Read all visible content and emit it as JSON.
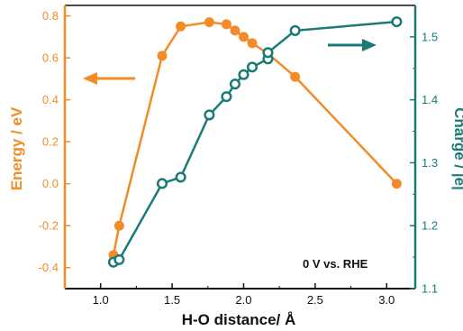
{
  "chart_data": {
    "type": "line",
    "xlabel": "H-O distance/ Å",
    "ylabel": "Energy / eV",
    "ylabel_right": "Charge / |e|",
    "annotation": "0 V vs. RHE",
    "xlim": [
      0.75,
      3.2
    ],
    "ylim": [
      -0.5,
      0.85
    ],
    "ylim_right": [
      1.1,
      1.55
    ],
    "xticks": [
      "1.0",
      "1.5",
      "2.0",
      "2.5",
      "3.0"
    ],
    "yticks": [
      "-0.4",
      "-0.2",
      "0.0",
      "0.2",
      "0.4",
      "0.6",
      "0.8"
    ],
    "yticks_right": [
      "1.1",
      "1.2",
      "1.3",
      "1.4",
      "1.5"
    ],
    "grid": false,
    "colors": {
      "energy": "#f28c28",
      "charge": "#1a7a78"
    },
    "series": [
      {
        "axis": "left",
        "marker": "filled-circle",
        "x": [
          1.09,
          1.13,
          1.43,
          1.56,
          1.76,
          1.88,
          1.94,
          2.0,
          2.06,
          2.17,
          2.36,
          3.07
        ],
        "y": [
          -0.34,
          -0.2,
          0.61,
          0.75,
          0.77,
          0.76,
          0.73,
          0.7,
          0.67,
          0.62,
          0.51,
          0.0
        ]
      },
      {
        "axis": "right",
        "marker": "open-circle",
        "x": [
          1.09,
          1.13,
          1.43,
          1.56,
          1.76,
          1.88,
          1.94,
          2.0,
          2.06,
          2.17,
          2.17,
          2.36,
          3.07
        ],
        "y": [
          1.142,
          1.146,
          1.267,
          1.277,
          1.376,
          1.405,
          1.425,
          1.44,
          1.452,
          1.465,
          1.475,
          1.51,
          1.524
        ]
      }
    ]
  }
}
